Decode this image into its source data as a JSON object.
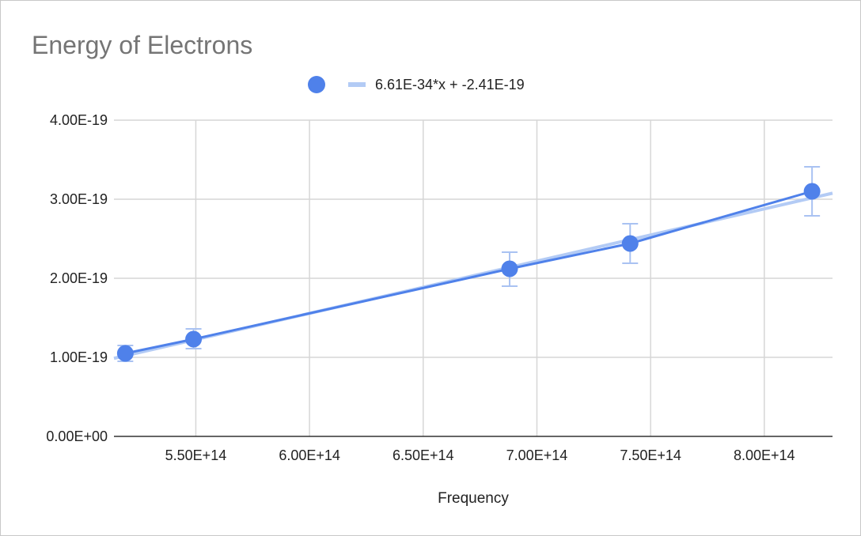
{
  "chart_data": {
    "type": "scatter",
    "title": "Energy of Electrons",
    "xlabel": "Frequency",
    "ylabel": "",
    "xlim": [
      514000000000000.0,
      830000000000000.0
    ],
    "ylim": [
      0,
      4e-19
    ],
    "x_ticks": [
      {
        "value": 550000000000000.0,
        "label": "5.50E+14"
      },
      {
        "value": 600000000000000.0,
        "label": "6.00E+14"
      },
      {
        "value": 650000000000000.0,
        "label": "6.50E+14"
      },
      {
        "value": 700000000000000.0,
        "label": "7.00E+14"
      },
      {
        "value": 750000000000000.0,
        "label": "7.50E+14"
      },
      {
        "value": 800000000000000.0,
        "label": "8.00E+14"
      }
    ],
    "y_ticks": [
      {
        "value": 0,
        "label": "0.00E+00"
      },
      {
        "value": 1e-19,
        "label": "1.00E-19"
      },
      {
        "value": 2e-19,
        "label": "2.00E-19"
      },
      {
        "value": 3e-19,
        "label": "3.00E-19"
      },
      {
        "value": 4e-19,
        "label": "4.00E-19"
      }
    ],
    "grid": true,
    "legend": {
      "position": "top",
      "trendline_label": "6.61E-34*x + -2.41E-19"
    },
    "series": [
      {
        "x": [
          519000000000000.0,
          549000000000000.0,
          688000000000000.0,
          741000000000000.0,
          821000000000000.0
        ],
        "y": [
          1.05e-19,
          1.23e-19,
          2.12e-19,
          2.44e-19,
          3.1e-19
        ],
        "error_low": [
          9.5e-20,
          1.11e-19,
          1.9e-19,
          2.19e-19,
          2.79e-19
        ],
        "error_high": [
          1.15e-19,
          1.36e-19,
          2.33e-19,
          2.69e-19,
          3.41e-19
        ]
      }
    ],
    "trendline": {
      "slope": 6.61e-34,
      "intercept": -2.41e-19
    },
    "colors": {
      "series": "#4f81ea",
      "trendline": "#b3cbf5",
      "error_bar": "#a9c2f2",
      "grid": "#d6d6d6",
      "axis": "#333333",
      "title": "#757575"
    }
  }
}
